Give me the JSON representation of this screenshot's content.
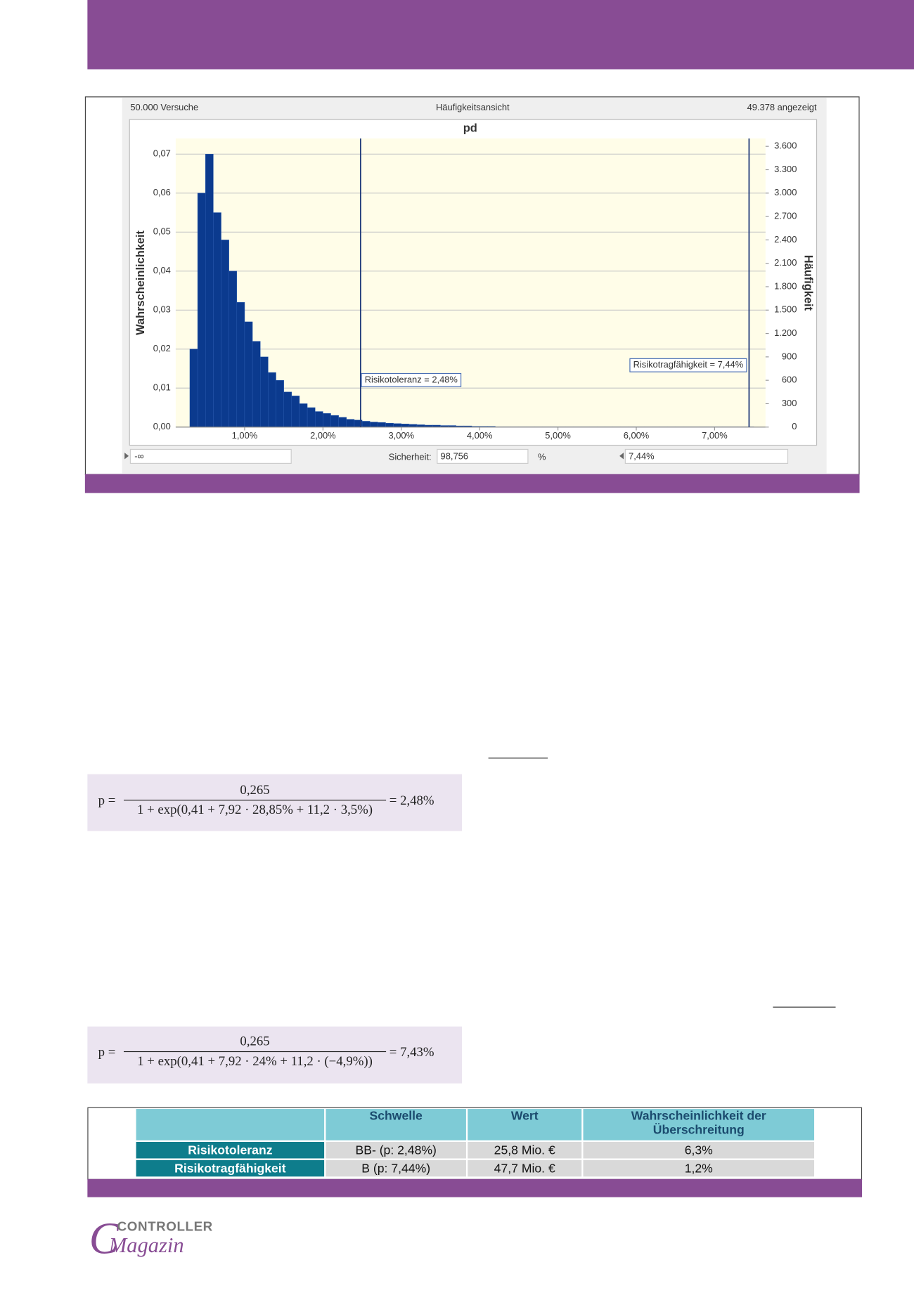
{
  "chart_data": {
    "type": "histogram",
    "title": "pd",
    "header_left": "50.000 Versuche",
    "header_center": "Häufigkeitsansicht",
    "header_right": "49.378 angezeigt",
    "ylabel": "Wahrscheinlichkeit",
    "y2label": "Häufigkeit",
    "color": "#0b3a8e",
    "bins": [
      0.3,
      0.4,
      0.5,
      0.6,
      0.7,
      0.8,
      0.9,
      1.0,
      1.1,
      1.2,
      1.3,
      1.4,
      1.5,
      1.6,
      1.7,
      1.8,
      1.9,
      2.0,
      2.1,
      2.2,
      2.3,
      2.4,
      2.5,
      2.6,
      2.7,
      2.8,
      2.9,
      3.0,
      3.1,
      3.2,
      3.3,
      3.4,
      3.5,
      3.6,
      3.7,
      3.8,
      3.9,
      4.0,
      4.1,
      4.2,
      4.3,
      4.4,
      4.5,
      4.6,
      4.7,
      4.8,
      4.9,
      5.0,
      5.1,
      5.2,
      5.3,
      5.4,
      5.5,
      5.6,
      5.7,
      5.8,
      5.9,
      6.0,
      6.1,
      6.2,
      6.3,
      6.4,
      6.5,
      6.6,
      6.7,
      6.8,
      6.9,
      7.0,
      7.1,
      7.2,
      7.3,
      7.4,
      7.5
    ],
    "values": [
      0.02,
      0.06,
      0.07,
      0.055,
      0.048,
      0.04,
      0.032,
      0.027,
      0.022,
      0.018,
      0.014,
      0.012,
      0.009,
      0.008,
      0.006,
      0.005,
      0.004,
      0.0035,
      0.003,
      0.0025,
      0.002,
      0.0018,
      0.0015,
      0.0013,
      0.0012,
      0.001,
      0.0009,
      0.0008,
      0.0007,
      0.0006,
      0.0005,
      0.0005,
      0.0004,
      0.0004,
      0.0003,
      0.0003,
      0.0002,
      0.0002,
      0.0002,
      0.0001,
      0.0001,
      0.0001,
      0.0001,
      0.0001,
      0.0001,
      0.0001,
      0.0001,
      0.0001,
      0.0001,
      0.0001,
      0.0001,
      0.0001,
      0.0001,
      0.0001,
      0.0001,
      0.0001,
      0.0001,
      0.0001,
      0.0001,
      0.0001,
      0.0001,
      0.0001,
      0.0001,
      0.0001,
      0.0001,
      0.0001,
      0.0001,
      0.0001,
      0.0001,
      0.0001,
      0.0001,
      0.0001
    ],
    "xlim": [
      0.12,
      7.65
    ],
    "xticks": [
      {
        "value": 1,
        "label": "1,00%"
      },
      {
        "value": 2,
        "label": "2,00%"
      },
      {
        "value": 3,
        "label": "3,00%"
      },
      {
        "value": 4,
        "label": "4,00%"
      },
      {
        "value": 5,
        "label": "5,00%"
      },
      {
        "value": 6,
        "label": "6,00%"
      },
      {
        "value": 7,
        "label": "7,00%"
      }
    ],
    "ylim": [
      0,
      0.074
    ],
    "yticks": [
      {
        "value": 0,
        "label": "0,00"
      },
      {
        "value": 0.01,
        "label": "0,01"
      },
      {
        "value": 0.02,
        "label": "0,02"
      },
      {
        "value": 0.03,
        "label": "0,03"
      },
      {
        "value": 0.04,
        "label": "0,04"
      },
      {
        "value": 0.05,
        "label": "0,05"
      },
      {
        "value": 0.06,
        "label": "0,06"
      },
      {
        "value": 0.07,
        "label": "0,07"
      }
    ],
    "y2lim": [
      0,
      3700
    ],
    "y2ticks": [
      0,
      300,
      600,
      900,
      {
        "value": 1200,
        "label": "1.200"
      },
      {
        "value": 1500,
        "label": "1.500"
      },
      {
        "value": 1800,
        "label": "1.800"
      },
      {
        "value": 2100,
        "label": "2.100"
      },
      {
        "value": 2400,
        "label": "2.400"
      },
      {
        "value": 2700,
        "label": "2.700"
      },
      {
        "value": 3000,
        "label": "3.000"
      },
      {
        "value": 3300,
        "label": "3.300"
      },
      {
        "value": 3600,
        "label": "3.600"
      }
    ],
    "grid": true,
    "annotations": [
      {
        "value": 2.48,
        "label": "Risikotoleranz = 2,48%"
      },
      {
        "value": 7.44,
        "label": "Risikotragfähigkeit = 7,44%"
      }
    ],
    "footer": {
      "left": "-∞",
      "certainty_label": "Sicherheit:",
      "certainty_value": "98,756",
      "certainty_unit": "%",
      "right": "7,44%"
    }
  },
  "formulas": [
    {
      "lhs": "p =",
      "numerator": "0,265",
      "denominator": "1 + exp(0,41 + 7,92 · 28,85% + 11,2 · 3,5%)",
      "result": "= 2,48%"
    },
    {
      "lhs": "p =",
      "numerator": "0,265",
      "denominator": "1 + exp(0,41 + 7,92 · 24% + 11,2 · (−4,9%))",
      "result": "= 7,43%"
    }
  ],
  "table": {
    "headers": [
      "Schwelle",
      "Wert",
      "Wahrscheinlichkeit der Überschreitung"
    ],
    "rows": [
      [
        "Risikotoleranz",
        "BB- (p: 2,48%)",
        "25,8 Mio. €",
        "6,3%"
      ],
      [
        "Risikotragfähigkeit",
        "B (p: 7,44%)",
        "47,7 Mio. €",
        "1,2%"
      ]
    ]
  },
  "logo": {
    "word": "CONTROLLER",
    "script": "Magazin"
  }
}
